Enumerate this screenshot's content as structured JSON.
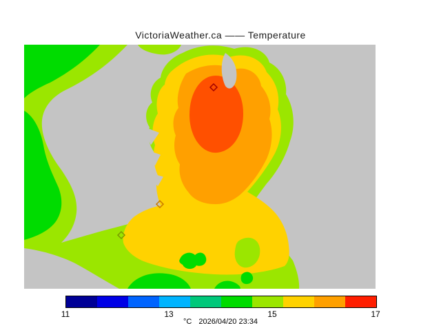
{
  "title": "VictoriaWeather.ca —— Temperature",
  "footer": {
    "units": "°C",
    "timestamp": "2026/04/20 23:34"
  },
  "colorbar": {
    "ticks": [
      "11",
      "13",
      "15",
      "17"
    ],
    "colors": [
      "#000096",
      "#0000E6",
      "#0064FF",
      "#00B4FF",
      "#00C87A",
      "#00DC00",
      "#9BE600",
      "#FFD200",
      "#FFA000",
      "#FF1E00"
    ]
  },
  "map": {
    "colors": {
      "water": "#C4C4C4",
      "green": "#00DC00",
      "yellow_green": "#9BE600",
      "yellow": "#FFD200",
      "orange": "#FFA000",
      "orange_red": "#FF5000"
    },
    "markers": [
      {
        "name": "station-marker-north",
        "color": "#A00000"
      },
      {
        "name": "station-marker-central",
        "color": "#C87800"
      },
      {
        "name": "station-marker-south",
        "color": "#7A9A00"
      }
    ]
  },
  "chart_data": {
    "type": "heatmap",
    "title": "VictoriaWeather.ca —— Temperature",
    "legend_ticks": [
      11,
      13,
      15,
      17
    ],
    "legend_units": "°C",
    "timestamp": "2026/04/20 23:34",
    "legend_position": "bottom",
    "notes": "Filled temperature contours over the Victoria BC region; gray = water, warm core (~16-17C) over central peninsula, cooler (~14-15C) to the west and south"
  }
}
